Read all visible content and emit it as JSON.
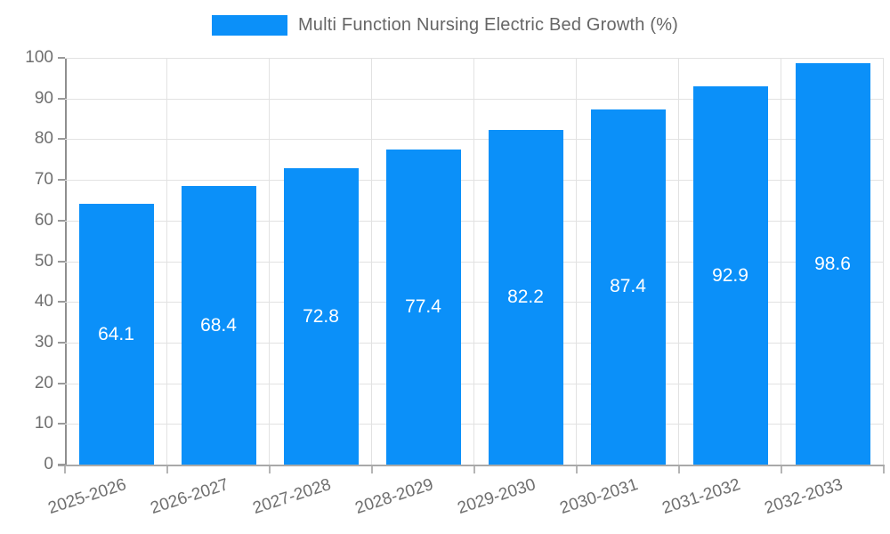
{
  "legend": {
    "label": "Multi Function Nursing Electric Bed Growth (%)",
    "swatch_color": "#0b90f9"
  },
  "chart_data": {
    "type": "bar",
    "title": "Multi Function Nursing Electric Bed Growth (%)",
    "categories": [
      "2025-2026",
      "2026-2027",
      "2027-2028",
      "2028-2029",
      "2029-2030",
      "2030-2031",
      "2031-2032",
      "2032-2033"
    ],
    "values": [
      64.1,
      68.4,
      72.8,
      77.4,
      82.2,
      87.4,
      92.9,
      98.6
    ],
    "value_labels": [
      "64.1",
      "68.4",
      "72.8",
      "77.4",
      "82.2",
      "87.4",
      "92.9",
      "98.6"
    ],
    "ytick_labels": [
      "0",
      "10",
      "20",
      "30",
      "40",
      "50",
      "60",
      "70",
      "80",
      "90",
      "100"
    ],
    "xlabel": "",
    "ylabel": "",
    "ylim": [
      0,
      100
    ],
    "ytick_step": 10,
    "grid": true,
    "legend_position": "top",
    "bar_color": "#0b90f9",
    "value_label_color": "#ffffff",
    "grid_color": "#e2e2e2",
    "axis_color": "#8f8f8f",
    "tick_label_color": "#6f6f6f"
  }
}
